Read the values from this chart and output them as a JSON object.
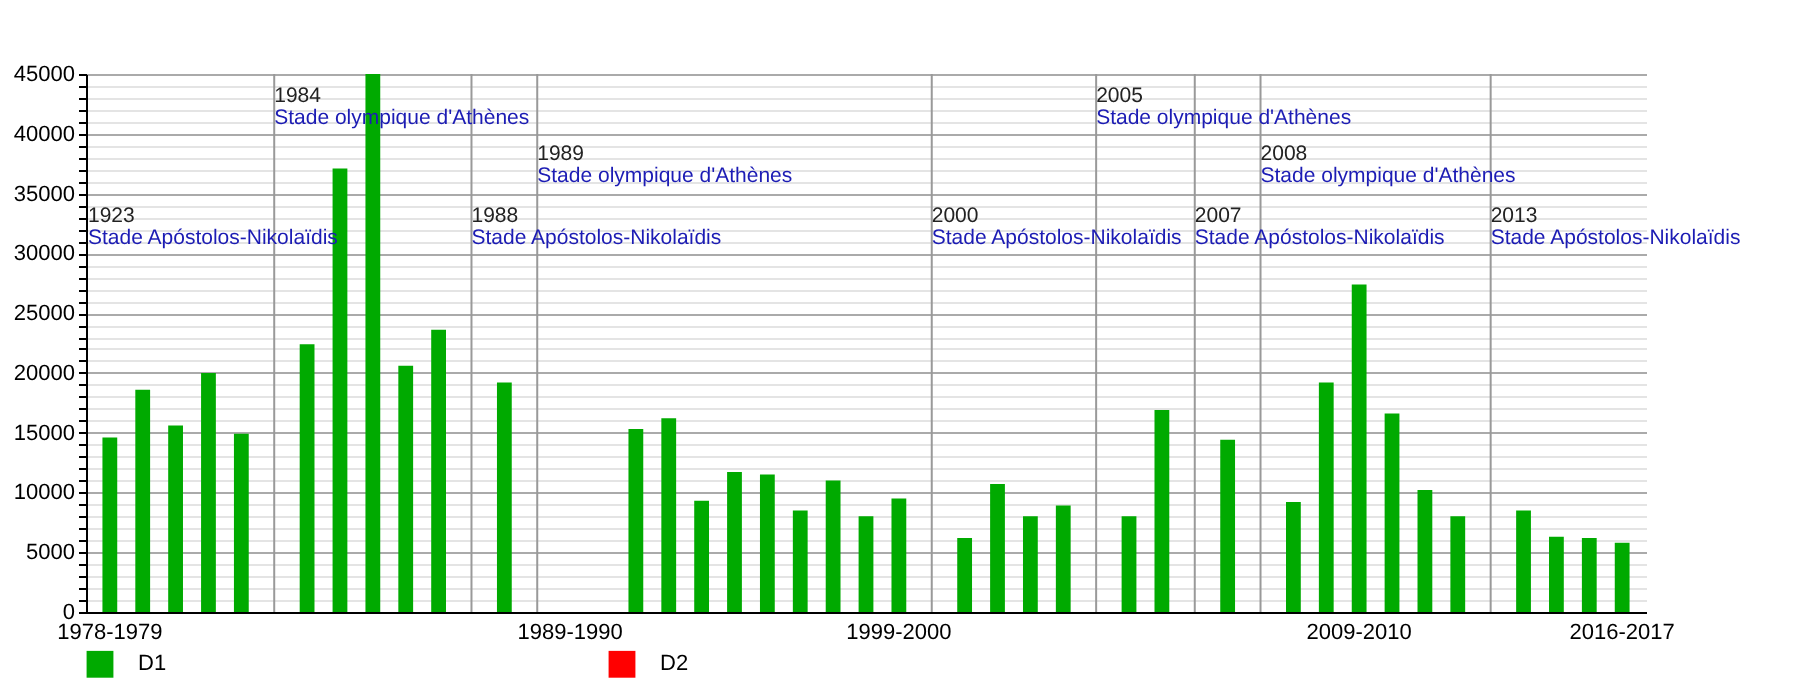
{
  "chart_data": {
    "type": "bar",
    "categories": [
      "1978-1979",
      null,
      null,
      null,
      null,
      null,
      null,
      null,
      null,
      null,
      null,
      null,
      null,
      null,
      "1989-1990",
      null,
      null,
      null,
      null,
      null,
      null,
      null,
      null,
      null,
      "1999-2000",
      null,
      null,
      null,
      null,
      null,
      null,
      null,
      null,
      null,
      null,
      null,
      null,
      null,
      "2009-2010",
      null,
      null,
      null,
      null,
      null,
      null,
      null,
      "2016-2017"
    ],
    "series": [
      {
        "name": "D1",
        "color": "#00aa00",
        "values": [
          14600,
          18600,
          15600,
          20000,
          14900,
          null,
          22400,
          37100,
          45000,
          20600,
          23600,
          null,
          19200,
          null,
          null,
          null,
          15300,
          16200,
          9300,
          11700,
          11500,
          8500,
          11000,
          8000,
          9500,
          null,
          6200,
          10700,
          8000,
          8900,
          null,
          8000,
          16900,
          null,
          14400,
          null,
          9200,
          19200,
          27400,
          16600,
          10200,
          8000,
          null,
          8500,
          6300,
          6200,
          5800
        ]
      },
      {
        "name": "D2",
        "color": "#ff0000",
        "values": [
          null,
          null,
          null,
          null,
          null,
          null,
          null,
          null,
          null,
          null,
          null,
          null,
          null,
          null,
          null,
          null,
          null,
          null,
          null,
          null,
          null,
          null,
          null,
          null,
          null,
          null,
          null,
          null,
          null,
          null,
          null,
          null,
          null,
          null,
          null,
          null,
          null,
          null,
          null,
          null,
          null,
          null,
          null,
          null,
          null,
          null,
          null
        ]
      }
    ],
    "ylim": [
      0,
      45000
    ],
    "yticks": [
      0,
      {
        "value": 1000,
        "label": null
      },
      {
        "value": 2000,
        "label": null
      },
      {
        "value": 3000,
        "label": null
      },
      {
        "value": 4000,
        "label": null
      },
      5000,
      {
        "value": 6000,
        "label": null
      },
      {
        "value": 7000,
        "label": null
      },
      {
        "value": 8000,
        "label": null
      },
      {
        "value": 9000,
        "label": null
      },
      10000,
      {
        "value": 11000,
        "label": null
      },
      {
        "value": 12000,
        "label": null
      },
      {
        "value": 13000,
        "label": null
      },
      {
        "value": 14000,
        "label": null
      },
      15000,
      {
        "value": 16000,
        "label": null
      },
      {
        "value": 17000,
        "label": null
      },
      {
        "value": 18000,
        "label": null
      },
      {
        "value": 19000,
        "label": null
      },
      20000,
      {
        "value": 21000,
        "label": null
      },
      {
        "value": 22000,
        "label": null
      },
      {
        "value": 23000,
        "label": null
      },
      {
        "value": 24000,
        "label": null
      },
      25000,
      {
        "value": 26000,
        "label": null
      },
      {
        "value": 27000,
        "label": null
      },
      {
        "value": 28000,
        "label": null
      },
      {
        "value": 29000,
        "label": null
      },
      30000,
      {
        "value": 31000,
        "label": null
      },
      {
        "value": 32000,
        "label": null
      },
      {
        "value": 33000,
        "label": null
      },
      {
        "value": 34000,
        "label": null
      },
      35000,
      {
        "value": 36000,
        "label": null
      },
      {
        "value": 37000,
        "label": null
      },
      {
        "value": 38000,
        "label": null
      },
      {
        "value": 39000,
        "label": null
      },
      40000,
      {
        "value": 41000,
        "label": null
      },
      {
        "value": 42000,
        "label": null
      },
      {
        "value": 43000,
        "label": null
      },
      {
        "value": 44000,
        "label": null
      },
      45000
    ],
    "grid": true,
    "legend": "bottom",
    "annotations": [
      "1923\nStade Apóstolos-Nikolaïdis",
      "1984\nStade olympique d'Athènes",
      "1988\nStade Apóstolos-Nikolaïdis",
      "1989\nStade olympique d'Athènes",
      "2000\nStade Apóstolos-Nikolaïdis",
      "2005\nStade olympique d'Athènes",
      "2007\nStade Apóstolos-Nikolaïdis",
      "2008\nStade olympique d'Athènes",
      "2013\nStade Apóstolos-Nikolaïdis"
    ]
  }
}
